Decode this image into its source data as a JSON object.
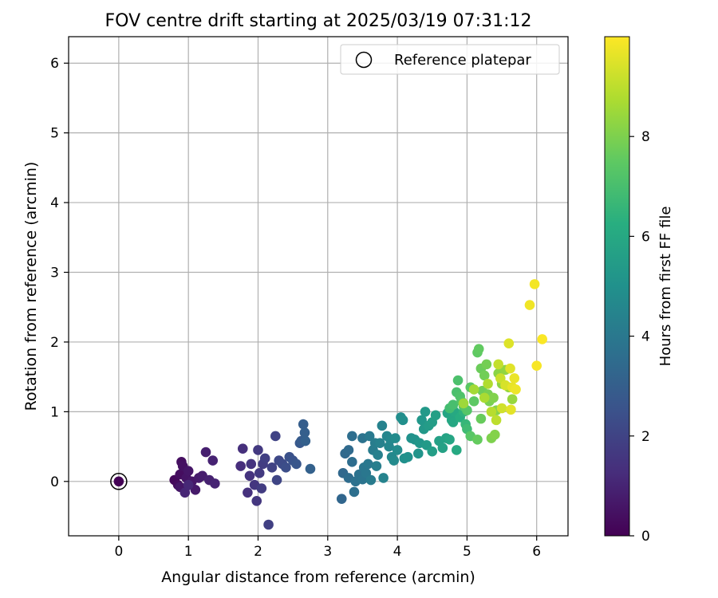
{
  "chart_data": {
    "type": "scatter",
    "title": "FOV centre drift starting at 2025/03/19 07:31:12",
    "xlabel": "Angular distance from reference (arcmin)",
    "ylabel": "Rotation from reference (arcmin)",
    "xlim": [
      -0.72,
      6.45
    ],
    "ylim": [
      -0.78,
      6.38
    ],
    "xticks": [
      0,
      1,
      2,
      3,
      4,
      5,
      6
    ],
    "yticks": [
      0,
      1,
      2,
      3,
      4,
      5,
      6
    ],
    "grid": true,
    "legend": {
      "placement": "top-right",
      "entries": [
        "Reference platepar"
      ]
    },
    "reference_point": {
      "x": 0,
      "y": 0,
      "label": "Reference platepar"
    },
    "colorbar": {
      "label": "Hours from first FF file",
      "colormap": "viridis",
      "min": 0,
      "max": 10,
      "ticks": [
        0,
        2,
        4,
        6,
        8
      ]
    },
    "points": [
      {
        "x": 0,
        "y": 0,
        "h": 0.05
      },
      {
        "x": 0.8,
        "y": 0.02,
        "h": 0.2
      },
      {
        "x": 0.85,
        "y": -0.05,
        "h": 0.3
      },
      {
        "x": 0.88,
        "y": 0.1,
        "h": 0.35
      },
      {
        "x": 0.9,
        "y": 0.28,
        "h": 0.4
      },
      {
        "x": 0.92,
        "y": 0.22,
        "h": 0.45
      },
      {
        "x": 0.95,
        "y": -0.1,
        "h": 0.5
      },
      {
        "x": 0.97,
        "y": 0.05,
        "h": 0.55
      },
      {
        "x": 1.0,
        "y": 0.15,
        "h": 0.6
      },
      {
        "x": 0.88,
        "y": -0.08,
        "h": 0.62
      },
      {
        "x": 1.05,
        "y": 0.0,
        "h": 0.65
      },
      {
        "x": 1.1,
        "y": -0.12,
        "h": 0.7
      },
      {
        "x": 1.15,
        "y": 0.05,
        "h": 0.75
      },
      {
        "x": 1.2,
        "y": 0.08,
        "h": 0.8
      },
      {
        "x": 1.25,
        "y": 0.42,
        "h": 0.85
      },
      {
        "x": 1.3,
        "y": 0.02,
        "h": 0.9
      },
      {
        "x": 1.35,
        "y": 0.3,
        "h": 0.95
      },
      {
        "x": 1.38,
        "y": -0.03,
        "h": 1.0
      },
      {
        "x": 0.95,
        "y": -0.16,
        "h": 1.05
      },
      {
        "x": 1.0,
        "y": -0.05,
        "h": 1.1
      },
      {
        "x": 1.75,
        "y": 0.22,
        "h": 1.3
      },
      {
        "x": 1.78,
        "y": 0.47,
        "h": 1.35
      },
      {
        "x": 1.85,
        "y": -0.16,
        "h": 1.4
      },
      {
        "x": 1.88,
        "y": 0.08,
        "h": 1.45
      },
      {
        "x": 1.9,
        "y": 0.25,
        "h": 1.5
      },
      {
        "x": 1.95,
        "y": -0.05,
        "h": 1.55
      },
      {
        "x": 1.98,
        "y": -0.28,
        "h": 1.6
      },
      {
        "x": 2.0,
        "y": 0.45,
        "h": 1.65
      },
      {
        "x": 2.02,
        "y": 0.12,
        "h": 1.7
      },
      {
        "x": 2.05,
        "y": -0.1,
        "h": 1.75
      },
      {
        "x": 2.07,
        "y": 0.25,
        "h": 1.8
      },
      {
        "x": 2.1,
        "y": 0.33,
        "h": 1.85
      },
      {
        "x": 2.15,
        "y": -0.62,
        "h": 1.9
      },
      {
        "x": 2.2,
        "y": 0.2,
        "h": 1.95
      },
      {
        "x": 2.25,
        "y": 0.65,
        "h": 2.0
      },
      {
        "x": 2.27,
        "y": 0.02,
        "h": 2.05
      },
      {
        "x": 2.3,
        "y": 0.3,
        "h": 2.15
      },
      {
        "x": 2.35,
        "y": 0.25,
        "h": 2.25
      },
      {
        "x": 2.4,
        "y": 0.2,
        "h": 2.35
      },
      {
        "x": 2.45,
        "y": 0.35,
        "h": 2.45
      },
      {
        "x": 2.5,
        "y": 0.3,
        "h": 2.55
      },
      {
        "x": 2.55,
        "y": 0.25,
        "h": 2.65
      },
      {
        "x": 2.6,
        "y": 0.55,
        "h": 2.75
      },
      {
        "x": 2.62,
        "y": 0.58,
        "h": 2.85
      },
      {
        "x": 2.65,
        "y": 0.82,
        "h": 2.95
      },
      {
        "x": 2.67,
        "y": 0.7,
        "h": 3.0
      },
      {
        "x": 2.68,
        "y": 0.58,
        "h": 3.05
      },
      {
        "x": 2.75,
        "y": 0.18,
        "h": 3.1
      },
      {
        "x": 3.2,
        "y": -0.25,
        "h": 3.3
      },
      {
        "x": 3.22,
        "y": 0.12,
        "h": 3.35
      },
      {
        "x": 3.25,
        "y": 0.4,
        "h": 3.4
      },
      {
        "x": 3.3,
        "y": 0.45,
        "h": 3.45
      },
      {
        "x": 3.3,
        "y": 0.05,
        "h": 3.5
      },
      {
        "x": 3.35,
        "y": 0.28,
        "h": 3.55
      },
      {
        "x": 3.35,
        "y": 0.65,
        "h": 3.6
      },
      {
        "x": 3.38,
        "y": -0.15,
        "h": 3.65
      },
      {
        "x": 3.4,
        "y": 0.0,
        "h": 3.7
      },
      {
        "x": 3.45,
        "y": 0.1,
        "h": 3.75
      },
      {
        "x": 3.5,
        "y": 0.62,
        "h": 3.8
      },
      {
        "x": 3.5,
        "y": 0.03,
        "h": 3.85
      },
      {
        "x": 3.52,
        "y": 0.2,
        "h": 3.9
      },
      {
        "x": 3.55,
        "y": 0.12,
        "h": 3.95
      },
      {
        "x": 3.58,
        "y": 0.25,
        "h": 4.0
      },
      {
        "x": 3.6,
        "y": 0.65,
        "h": 4.05
      },
      {
        "x": 3.62,
        "y": 0.02,
        "h": 4.1
      },
      {
        "x": 3.65,
        "y": 0.45,
        "h": 4.15
      },
      {
        "x": 3.68,
        "y": 0.55,
        "h": 4.2
      },
      {
        "x": 3.7,
        "y": 0.22,
        "h": 4.25
      },
      {
        "x": 3.72,
        "y": 0.38,
        "h": 4.3
      },
      {
        "x": 3.75,
        "y": 0.55,
        "h": 4.35
      },
      {
        "x": 3.78,
        "y": 0.8,
        "h": 4.4
      },
      {
        "x": 3.8,
        "y": 0.05,
        "h": 4.45
      },
      {
        "x": 3.85,
        "y": 0.65,
        "h": 4.5
      },
      {
        "x": 3.88,
        "y": 0.5,
        "h": 4.55
      },
      {
        "x": 3.9,
        "y": 0.6,
        "h": 4.6
      },
      {
        "x": 3.92,
        "y": 0.35,
        "h": 4.65
      },
      {
        "x": 3.95,
        "y": 0.3,
        "h": 4.7
      },
      {
        "x": 3.97,
        "y": 0.62,
        "h": 4.75
      },
      {
        "x": 4.0,
        "y": 0.45,
        "h": 4.8
      },
      {
        "x": 4.05,
        "y": 0.92,
        "h": 4.85
      },
      {
        "x": 4.08,
        "y": 0.88,
        "h": 4.9
      },
      {
        "x": 4.1,
        "y": 0.33,
        "h": 4.95
      },
      {
        "x": 4.15,
        "y": 0.35,
        "h": 5.0
      },
      {
        "x": 4.2,
        "y": 0.62,
        "h": 5.05
      },
      {
        "x": 4.25,
        "y": 0.6,
        "h": 5.1
      },
      {
        "x": 4.3,
        "y": 0.4,
        "h": 5.15
      },
      {
        "x": 4.32,
        "y": 0.55,
        "h": 5.2
      },
      {
        "x": 4.35,
        "y": 0.88,
        "h": 5.25
      },
      {
        "x": 4.38,
        "y": 0.75,
        "h": 5.3
      },
      {
        "x": 4.4,
        "y": 1.0,
        "h": 5.35
      },
      {
        "x": 4.42,
        "y": 0.52,
        "h": 5.4
      },
      {
        "x": 4.45,
        "y": 0.8,
        "h": 5.45
      },
      {
        "x": 4.5,
        "y": 0.85,
        "h": 5.5
      },
      {
        "x": 4.5,
        "y": 0.43,
        "h": 5.55
      },
      {
        "x": 4.55,
        "y": 0.95,
        "h": 5.6
      },
      {
        "x": 4.6,
        "y": 0.58,
        "h": 5.65
      },
      {
        "x": 4.65,
        "y": 0.48,
        "h": 5.7
      },
      {
        "x": 4.7,
        "y": 0.62,
        "h": 5.75
      },
      {
        "x": 4.72,
        "y": 0.98,
        "h": 5.8
      },
      {
        "x": 4.75,
        "y": 0.6,
        "h": 5.85
      },
      {
        "x": 4.78,
        "y": 0.88,
        "h": 5.9
      },
      {
        "x": 4.8,
        "y": 0.85,
        "h": 5.95
      },
      {
        "x": 4.82,
        "y": 1.0,
        "h": 6.0
      },
      {
        "x": 4.85,
        "y": 0.45,
        "h": 6.05
      },
      {
        "x": 4.9,
        "y": 0.92,
        "h": 6.2
      },
      {
        "x": 4.95,
        "y": 1.0,
        "h": 6.4
      },
      {
        "x": 4.98,
        "y": 0.82,
        "h": 6.6
      },
      {
        "x": 5.0,
        "y": 0.75,
        "h": 6.8
      },
      {
        "x": 4.75,
        "y": 1.05,
        "h": 6.9
      },
      {
        "x": 4.8,
        "y": 1.1,
        "h": 7.0
      },
      {
        "x": 4.85,
        "y": 1.28,
        "h": 7.05
      },
      {
        "x": 4.87,
        "y": 1.45,
        "h": 7.1
      },
      {
        "x": 4.9,
        "y": 1.22,
        "h": 7.15
      },
      {
        "x": 4.92,
        "y": 1.15,
        "h": 7.2
      },
      {
        "x": 4.95,
        "y": 1.08,
        "h": 7.25
      },
      {
        "x": 5.0,
        "y": 1.02,
        "h": 7.3
      },
      {
        "x": 5.05,
        "y": 0.65,
        "h": 7.35
      },
      {
        "x": 5.05,
        "y": 1.35,
        "h": 7.4
      },
      {
        "x": 5.1,
        "y": 1.15,
        "h": 7.45
      },
      {
        "x": 5.15,
        "y": 1.85,
        "h": 7.5
      },
      {
        "x": 5.17,
        "y": 1.9,
        "h": 7.55
      },
      {
        "x": 5.15,
        "y": 0.6,
        "h": 7.6
      },
      {
        "x": 5.2,
        "y": 0.9,
        "h": 7.65
      },
      {
        "x": 5.2,
        "y": 1.62,
        "h": 7.7
      },
      {
        "x": 5.22,
        "y": 1.3,
        "h": 7.75
      },
      {
        "x": 5.25,
        "y": 1.52,
        "h": 7.8
      },
      {
        "x": 5.28,
        "y": 1.68,
        "h": 7.85
      },
      {
        "x": 5.3,
        "y": 1.25,
        "h": 7.9
      },
      {
        "x": 5.32,
        "y": 1.15,
        "h": 7.95
      },
      {
        "x": 5.35,
        "y": 0.62,
        "h": 8.0
      },
      {
        "x": 5.38,
        "y": 1.2,
        "h": 8.05
      },
      {
        "x": 5.4,
        "y": 0.67,
        "h": 8.1
      },
      {
        "x": 5.42,
        "y": 1.02,
        "h": 8.15
      },
      {
        "x": 5.45,
        "y": 1.55,
        "h": 8.2
      },
      {
        "x": 5.5,
        "y": 1.4,
        "h": 8.25
      },
      {
        "x": 5.55,
        "y": 1.6,
        "h": 8.3
      },
      {
        "x": 5.6,
        "y": 1.35,
        "h": 8.35
      },
      {
        "x": 5.65,
        "y": 1.18,
        "h": 8.4
      },
      {
        "x": 4.95,
        "y": 1.12,
        "h": 8.5
      },
      {
        "x": 5.1,
        "y": 1.32,
        "h": 8.6
      },
      {
        "x": 5.25,
        "y": 1.2,
        "h": 8.7
      },
      {
        "x": 5.3,
        "y": 1.4,
        "h": 8.8
      },
      {
        "x": 5.35,
        "y": 1.0,
        "h": 8.9
      },
      {
        "x": 5.42,
        "y": 0.88,
        "h": 9.0
      },
      {
        "x": 5.45,
        "y": 1.68,
        "h": 9.1
      },
      {
        "x": 5.48,
        "y": 1.48,
        "h": 9.2
      },
      {
        "x": 5.5,
        "y": 1.05,
        "h": 9.3
      },
      {
        "x": 5.55,
        "y": 1.38,
        "h": 9.4
      },
      {
        "x": 5.6,
        "y": 1.98,
        "h": 9.5
      },
      {
        "x": 5.62,
        "y": 1.62,
        "h": 9.55
      },
      {
        "x": 5.63,
        "y": 1.03,
        "h": 9.6
      },
      {
        "x": 5.65,
        "y": 1.35,
        "h": 9.65
      },
      {
        "x": 5.68,
        "y": 1.48,
        "h": 9.7
      },
      {
        "x": 5.7,
        "y": 1.32,
        "h": 9.75
      },
      {
        "x": 5.9,
        "y": 2.53,
        "h": 9.8
      },
      {
        "x": 5.97,
        "y": 2.83,
        "h": 9.85
      },
      {
        "x": 6.0,
        "y": 1.66,
        "h": 9.9
      },
      {
        "x": 6.08,
        "y": 2.04,
        "h": 9.95
      }
    ]
  }
}
